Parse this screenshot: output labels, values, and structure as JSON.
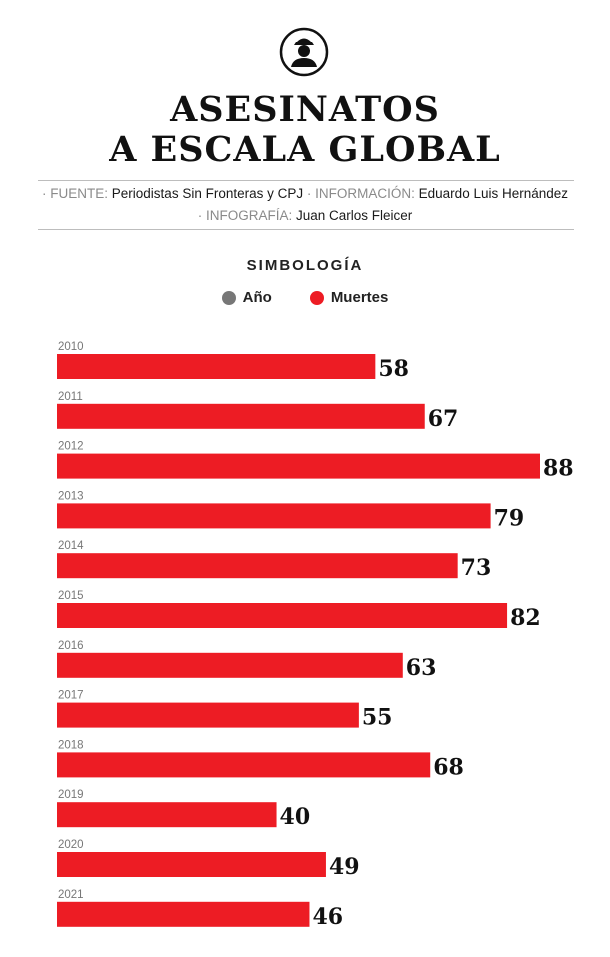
{
  "header": {
    "title_line1": "ASESINATOS",
    "title_line2": "A ESCALA GLOBAL",
    "credits": {
      "sep": "·",
      "fuente_key": "FUENTE:",
      "fuente_val": "Periodistas Sin Fronteras y CPJ",
      "info_key": "INFORMACIÓN:",
      "info_val": "Eduardo Luis Hernández",
      "info_graf_key": "INFOGRAFÍA:",
      "info_graf_val": "Juan Carlos Fleicer"
    }
  },
  "legend": {
    "title": "SIMBOLOGÍA",
    "items": [
      {
        "label": "Año",
        "color": "#777777"
      },
      {
        "label": "Muertes",
        "color": "#ed1c24"
      }
    ]
  },
  "logo_icon": "journalist-figure-icon",
  "chart_data": {
    "type": "bar",
    "orientation": "horizontal",
    "categories": [
      "2010",
      "2011",
      "2012",
      "2013",
      "2014",
      "2015",
      "2016",
      "2017",
      "2018",
      "2019",
      "2020",
      "2021"
    ],
    "series": [
      {
        "name": "Muertes",
        "values": [
          58,
          67,
          88,
          79,
          73,
          82,
          63,
          55,
          68,
          40,
          49,
          46
        ],
        "color": "#ed1c24"
      }
    ],
    "xlim": [
      0,
      88
    ],
    "grid": false,
    "legend_position": "top-center"
  }
}
